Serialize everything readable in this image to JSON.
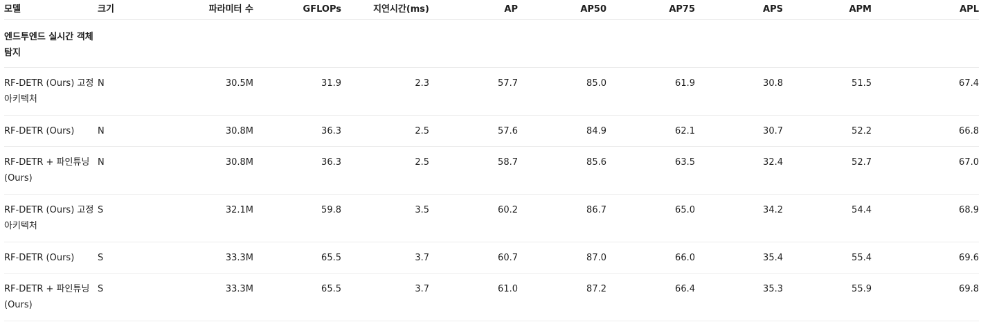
{
  "headers": [
    "모델",
    "크기",
    "파라미터 수",
    "GFLOPs",
    "지연시간(ms)",
    "AP",
    "AP50",
    "AP75",
    "APS",
    "APM",
    "APL"
  ],
  "section_label": "엔드투엔드 실시간 객체 탐지",
  "rows": [
    [
      "RF-DETR (Ours) 고정 아키텍처",
      "N",
      "30.5M",
      "31.9",
      "2.3",
      "57.7",
      "85.0",
      "61.9",
      "30.8",
      "51.5",
      "67.4"
    ],
    [
      "RF-DETR (Ours)",
      "N",
      "30.8M",
      "36.3",
      "2.5",
      "57.6",
      "84.9",
      "62.1",
      "30.7",
      "52.2",
      "66.8"
    ],
    [
      "RF-DETR + 파인튜닝 (Ours)",
      "N",
      "30.8M",
      "36.3",
      "2.5",
      "58.7",
      "85.6",
      "63.5",
      "32.4",
      "52.7",
      "67.0"
    ],
    [
      "RF-DETR (Ours) 고정 아키텍처",
      "S",
      "32.1M",
      "59.8",
      "3.5",
      "60.2",
      "86.7",
      "65.0",
      "34.2",
      "54.4",
      "68.9"
    ],
    [
      "RF-DETR (Ours)",
      "S",
      "33.3M",
      "65.5",
      "3.7",
      "60.7",
      "87.0",
      "66.0",
      "35.4",
      "55.4",
      "69.6"
    ],
    [
      "RF-DETR + 파인튜닝 (Ours)",
      "S",
      "33.3M",
      "65.5",
      "3.7",
      "61.0",
      "87.2",
      "66.4",
      "35.3",
      "55.9",
      "69.8"
    ]
  ]
}
